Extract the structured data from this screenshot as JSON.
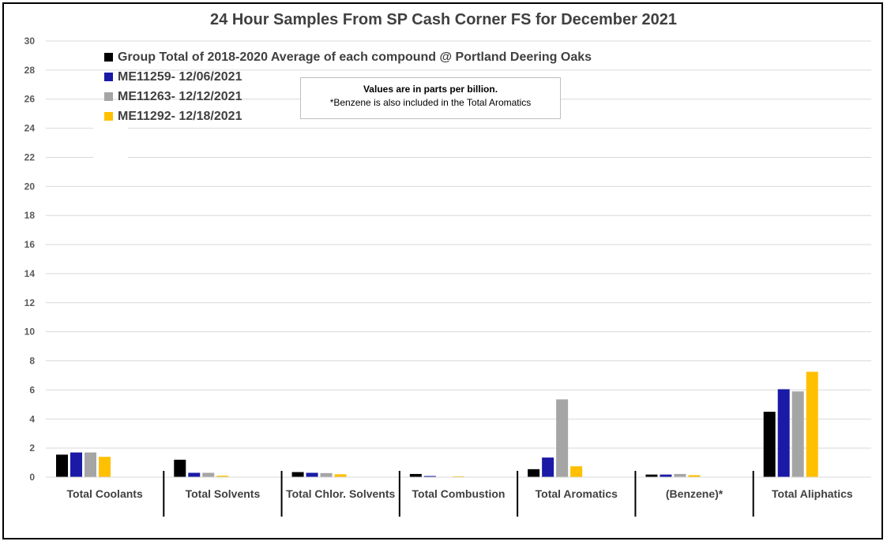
{
  "chart_data": {
    "type": "bar",
    "title": "24 Hour Samples From SP Cash Corner FS for December 2021",
    "categories": [
      "Total Coolants",
      "Total Solvents",
      "Total Chlor. Solvents",
      "Total Combustion",
      "Total Aromatics",
      "(Benzene)*",
      "Total Aliphatics"
    ],
    "series": [
      {
        "name": "Group Total of 2018-2020 Average of each compound @ Portland Deering Oaks",
        "color": "#000000",
        "values": [
          1.55,
          1.2,
          0.35,
          0.22,
          0.55,
          0.18,
          4.5
        ]
      },
      {
        "name": "ME11259- 12/06/2021",
        "color": "#1a1aa6",
        "values": [
          1.7,
          0.3,
          0.3,
          0.08,
          1.35,
          0.18,
          6.05
        ]
      },
      {
        "name": "ME11263- 12/12/2021",
        "color": "#a5a5a5",
        "values": [
          1.7,
          0.3,
          0.28,
          0.0,
          5.35,
          0.22,
          5.9
        ]
      },
      {
        "name": "ME11292- 12/18/2021",
        "color": "#ffc000",
        "values": [
          1.4,
          0.1,
          0.2,
          0.06,
          0.75,
          0.14,
          7.25
        ]
      }
    ],
    "ylim": [
      0,
      30
    ],
    "yticks": [
      0,
      2,
      4,
      6,
      8,
      10,
      12,
      14,
      16,
      18,
      20,
      22,
      24,
      26,
      28,
      30
    ],
    "xlabel": "",
    "ylabel": "",
    "grid": true,
    "legend_position": "top-left",
    "annotation": {
      "line1": "Values are in parts per billion.",
      "line2": "*Benzene is also included in the Total Aromatics"
    }
  }
}
